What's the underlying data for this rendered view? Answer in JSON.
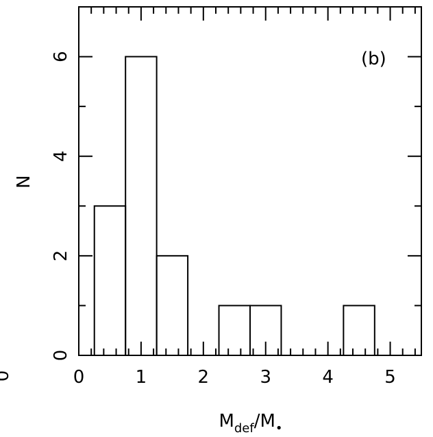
{
  "chart_data": {
    "type": "bar",
    "panel_label": "(b)",
    "x_axis_label": {
      "main": "M",
      "sub": "def",
      "sep": "/",
      "main2": "M",
      "sub2": "•"
    },
    "y_axis_label": "N",
    "left_cut_label": "0",
    "xlim": [
      0,
      5.5
    ],
    "ylim": [
      0,
      7
    ],
    "x_ticks": [
      0,
      1,
      2,
      3,
      4,
      5
    ],
    "y_ticks": [
      0,
      2,
      4,
      6
    ],
    "bin_width": 0.5,
    "bins": [
      {
        "x0": 0.25,
        "x1": 0.75,
        "count": 3
      },
      {
        "x0": 0.75,
        "x1": 1.25,
        "count": 6
      },
      {
        "x0": 1.25,
        "x1": 1.75,
        "count": 2
      },
      {
        "x0": 2.25,
        "x1": 2.75,
        "count": 1
      },
      {
        "x0": 2.75,
        "x1": 3.25,
        "count": 1
      },
      {
        "x0": 4.25,
        "x1": 4.75,
        "count": 1
      }
    ]
  }
}
